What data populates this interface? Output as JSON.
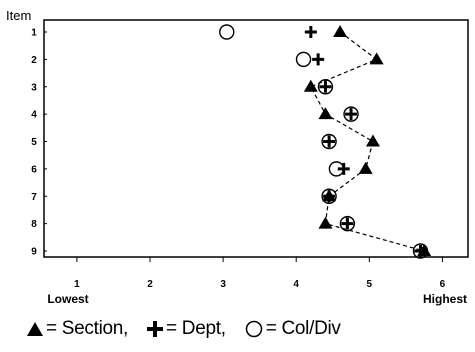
{
  "chart_data": {
    "type": "scatter",
    "ylabel": "Item",
    "categories": [
      "1",
      "2",
      "3",
      "4",
      "5",
      "6",
      "7",
      "8",
      "9"
    ],
    "xticks": [
      1,
      2,
      3,
      4,
      5,
      6
    ],
    "xlim": [
      0.55,
      6.35
    ],
    "x_low_label": "Lowest",
    "x_high_label": "Highest",
    "grid": false,
    "series": [
      {
        "name": "Section",
        "marker": "triangle",
        "connected": true,
        "values": [
          4.6,
          5.1,
          4.2,
          4.4,
          5.05,
          4.95,
          4.45,
          4.4,
          5.75
        ]
      },
      {
        "name": "Dept",
        "marker": "plus",
        "connected": false,
        "values": [
          4.2,
          4.3,
          4.4,
          4.75,
          4.45,
          4.65,
          4.45,
          4.7,
          5.7
        ]
      },
      {
        "name": "Col/Div",
        "marker": "circle",
        "connected": false,
        "values": [
          3.05,
          4.1,
          4.4,
          4.75,
          4.45,
          4.55,
          4.45,
          4.7,
          5.7
        ]
      }
    ]
  },
  "legend": {
    "section_label": "= Section,",
    "dept_label": "= Dept,",
    "coldiv_label": "= Col/Div"
  }
}
